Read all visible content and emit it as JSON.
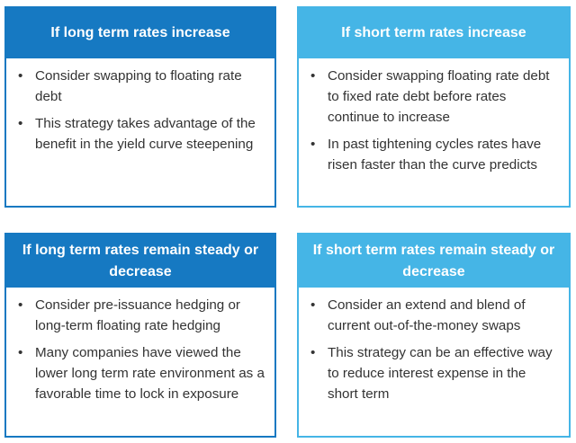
{
  "cards": [
    {
      "title": "If long term rates increase",
      "bullets": [
        "Consider swapping to floating rate debt",
        "This strategy takes advantage of the benefit in the yield curve steepening"
      ]
    },
    {
      "title": "If short term rates increase",
      "bullets": [
        "Consider swapping floating rate debt to fixed rate debt before rates continue to increase",
        "In past tightening cycles rates have risen faster than the curve predicts"
      ]
    },
    {
      "title": "If long term rates remain steady or decrease",
      "bullets": [
        "Consider pre-issuance hedging or long-term floating rate hedging",
        "Many companies have viewed the lower long term rate environment as a favorable time to lock in exposure"
      ]
    },
    {
      "title": "If short term rates remain steady or decrease",
      "bullets": [
        "Consider an extend and blend of current out-of-the-money swaps",
        "This strategy can be an effective way to reduce interest expense in the short term"
      ]
    }
  ],
  "bullet_symbol": "•",
  "colors": {
    "dark_blue": "#1679c2",
    "light_blue": "#45b5e6",
    "text": "#333333"
  }
}
